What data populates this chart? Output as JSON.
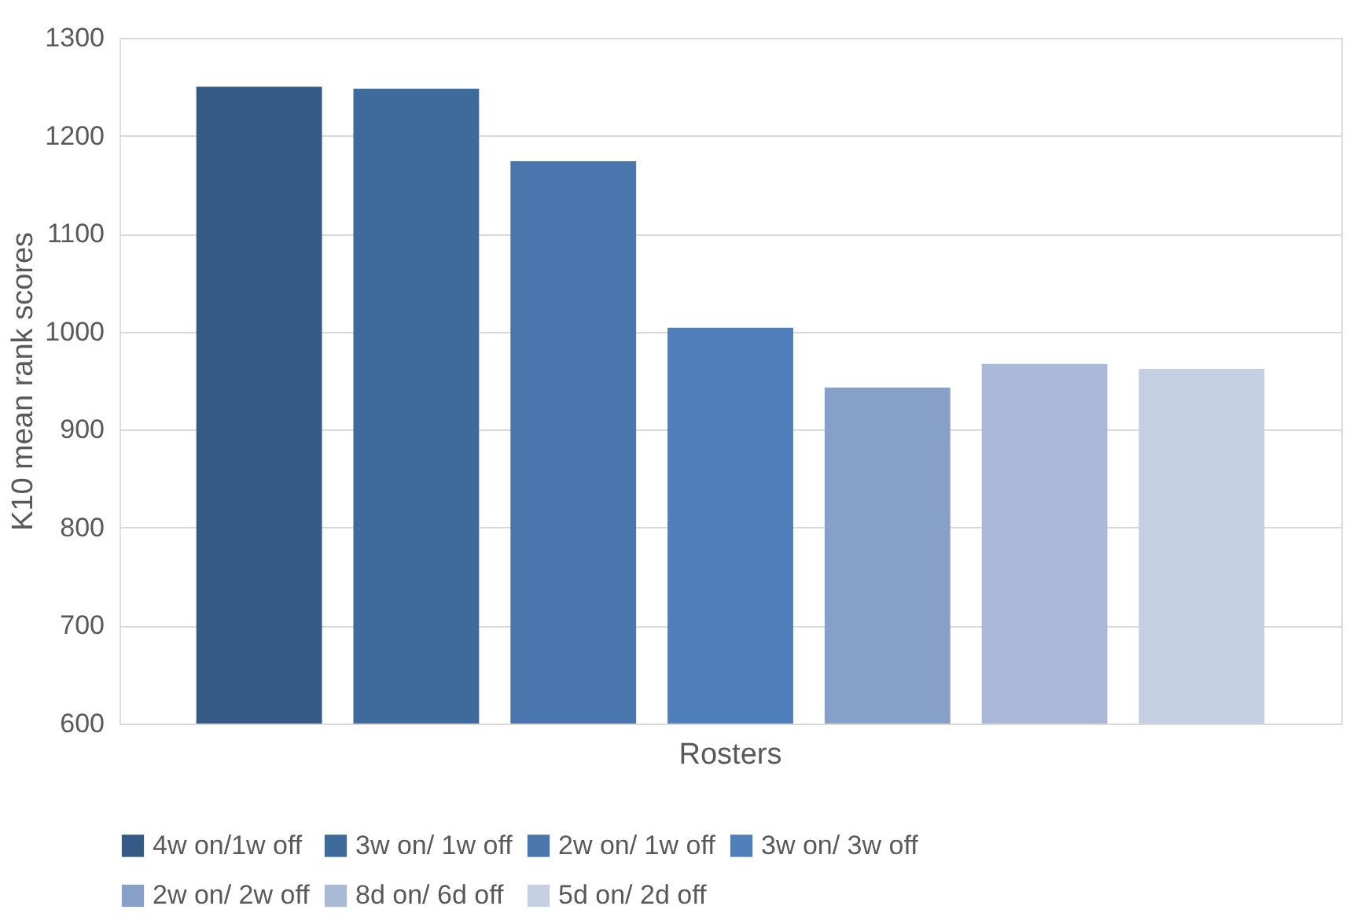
{
  "chart_data": {
    "type": "bar",
    "ylabel": "K10 mean rank scores",
    "categories": [
      "Rosters"
    ],
    "series": [
      {
        "name": "4w on/1w off",
        "color": "#355a86",
        "values": [
          1250
        ]
      },
      {
        "name": "3w on/ 1w off",
        "color": "#3f6a9c",
        "values": [
          1248
        ]
      },
      {
        "name": "2w on/ 1w off",
        "color": "#4876ad",
        "values": [
          1174
        ]
      },
      {
        "name": "3w on/ 3w off",
        "color": "#4f80bb",
        "values": [
          1004
        ]
      },
      {
        "name": "2w on/ 2w off",
        "color": "#86a0c9",
        "values": [
          943
        ]
      },
      {
        "name": "8d on/ 6d off",
        "color": "#a9b9d7",
        "values": [
          967
        ]
      },
      {
        "name": "5d on/ 2d off",
        "color": "#c5d0e3",
        "values": [
          962
        ]
      }
    ],
    "ylim": [
      600,
      1300
    ],
    "yticks": [
      600,
      700,
      800,
      900,
      1000,
      1100,
      1200,
      1300
    ],
    "grid": "y",
    "legend": "bottom"
  }
}
